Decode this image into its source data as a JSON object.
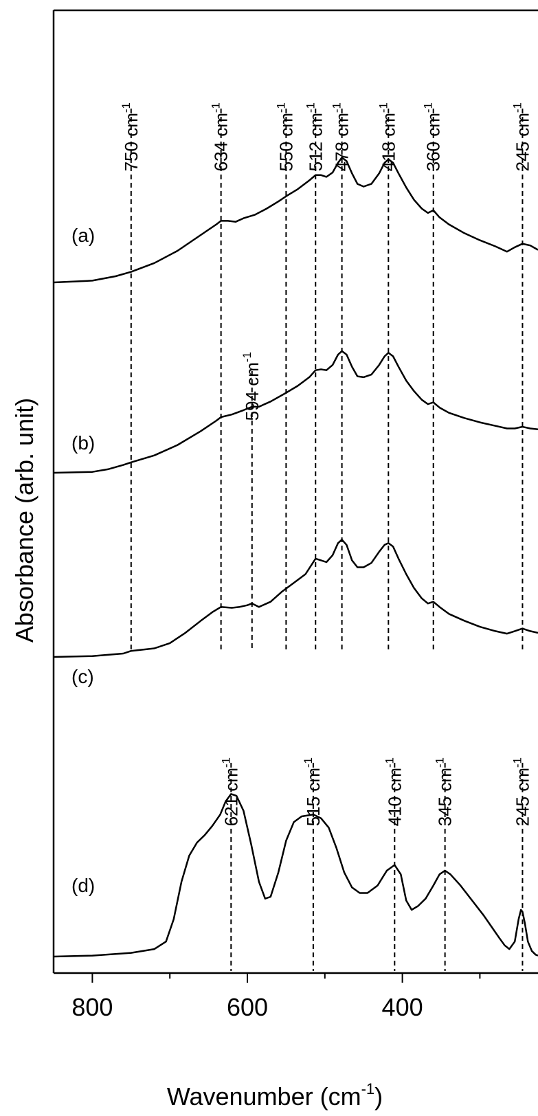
{
  "chart_data": {
    "type": "line",
    "xlabel": "Wavenumber (cm",
    "xlabel_sup": "-1",
    "xlabel_close": ")",
    "ylabel": "Absorbance (arb. unit)",
    "xlim": [
      850,
      225
    ],
    "x_reversed": true,
    "x_ticks": [
      800,
      600,
      400
    ],
    "y_ticks_shown": false,
    "grid": false,
    "legend": "none",
    "series": [
      {
        "label": "(a)",
        "points": [
          [
            850,
            0.0
          ],
          [
            800,
            0.01
          ],
          [
            770,
            0.035
          ],
          [
            750,
            0.06
          ],
          [
            720,
            0.11
          ],
          [
            690,
            0.18
          ],
          [
            660,
            0.27
          ],
          [
            640,
            0.33
          ],
          [
            634,
            0.35
          ],
          [
            625,
            0.35
          ],
          [
            615,
            0.345
          ],
          [
            605,
            0.365
          ],
          [
            590,
            0.385
          ],
          [
            575,
            0.42
          ],
          [
            560,
            0.46
          ],
          [
            550,
            0.49
          ],
          [
            535,
            0.53
          ],
          [
            520,
            0.58
          ],
          [
            512,
            0.61
          ],
          [
            505,
            0.61
          ],
          [
            498,
            0.6
          ],
          [
            490,
            0.625
          ],
          [
            483,
            0.68
          ],
          [
            478,
            0.71
          ],
          [
            472,
            0.69
          ],
          [
            465,
            0.62
          ],
          [
            458,
            0.56
          ],
          [
            450,
            0.545
          ],
          [
            440,
            0.56
          ],
          [
            430,
            0.62
          ],
          [
            423,
            0.68
          ],
          [
            418,
            0.7
          ],
          [
            412,
            0.68
          ],
          [
            405,
            0.62
          ],
          [
            395,
            0.54
          ],
          [
            385,
            0.47
          ],
          [
            375,
            0.42
          ],
          [
            367,
            0.395
          ],
          [
            360,
            0.41
          ],
          [
            352,
            0.37
          ],
          [
            340,
            0.33
          ],
          [
            320,
            0.28
          ],
          [
            300,
            0.24
          ],
          [
            280,
            0.205
          ],
          [
            265,
            0.175
          ],
          [
            255,
            0.2
          ],
          [
            245,
            0.22
          ],
          [
            235,
            0.21
          ],
          [
            225,
            0.185
          ]
        ]
      },
      {
        "label": "(b)",
        "points": [
          [
            850,
            0.0
          ],
          [
            800,
            0.005
          ],
          [
            780,
            0.02
          ],
          [
            760,
            0.045
          ],
          [
            750,
            0.06
          ],
          [
            720,
            0.1
          ],
          [
            690,
            0.16
          ],
          [
            660,
            0.24
          ],
          [
            640,
            0.3
          ],
          [
            634,
            0.32
          ],
          [
            620,
            0.335
          ],
          [
            605,
            0.36
          ],
          [
            594,
            0.38
          ],
          [
            585,
            0.38
          ],
          [
            570,
            0.41
          ],
          [
            550,
            0.46
          ],
          [
            535,
            0.5
          ],
          [
            520,
            0.55
          ],
          [
            512,
            0.59
          ],
          [
            505,
            0.595
          ],
          [
            498,
            0.59
          ],
          [
            490,
            0.62
          ],
          [
            483,
            0.68
          ],
          [
            478,
            0.7
          ],
          [
            472,
            0.68
          ],
          [
            465,
            0.61
          ],
          [
            458,
            0.555
          ],
          [
            450,
            0.55
          ],
          [
            440,
            0.565
          ],
          [
            430,
            0.62
          ],
          [
            423,
            0.67
          ],
          [
            418,
            0.69
          ],
          [
            412,
            0.67
          ],
          [
            405,
            0.61
          ],
          [
            395,
            0.53
          ],
          [
            385,
            0.47
          ],
          [
            375,
            0.42
          ],
          [
            367,
            0.395
          ],
          [
            360,
            0.405
          ],
          [
            352,
            0.375
          ],
          [
            340,
            0.345
          ],
          [
            320,
            0.315
          ],
          [
            300,
            0.29
          ],
          [
            280,
            0.27
          ],
          [
            265,
            0.255
          ],
          [
            255,
            0.255
          ],
          [
            245,
            0.265
          ],
          [
            235,
            0.255
          ],
          [
            225,
            0.25
          ]
        ]
      },
      {
        "label": "(c)",
        "points": [
          [
            850,
            0.0
          ],
          [
            800,
            0.005
          ],
          [
            760,
            0.02
          ],
          [
            750,
            0.035
          ],
          [
            720,
            0.05
          ],
          [
            700,
            0.08
          ],
          [
            680,
            0.14
          ],
          [
            660,
            0.21
          ],
          [
            645,
            0.26
          ],
          [
            634,
            0.29
          ],
          [
            620,
            0.285
          ],
          [
            610,
            0.29
          ],
          [
            600,
            0.3
          ],
          [
            594,
            0.31
          ],
          [
            585,
            0.29
          ],
          [
            570,
            0.32
          ],
          [
            555,
            0.38
          ],
          [
            540,
            0.43
          ],
          [
            525,
            0.48
          ],
          [
            512,
            0.57
          ],
          [
            505,
            0.56
          ],
          [
            498,
            0.55
          ],
          [
            490,
            0.59
          ],
          [
            483,
            0.66
          ],
          [
            478,
            0.68
          ],
          [
            472,
            0.65
          ],
          [
            465,
            0.56
          ],
          [
            458,
            0.52
          ],
          [
            450,
            0.52
          ],
          [
            440,
            0.545
          ],
          [
            430,
            0.61
          ],
          [
            423,
            0.65
          ],
          [
            418,
            0.66
          ],
          [
            412,
            0.64
          ],
          [
            405,
            0.57
          ],
          [
            395,
            0.48
          ],
          [
            385,
            0.4
          ],
          [
            375,
            0.34
          ],
          [
            367,
            0.31
          ],
          [
            360,
            0.32
          ],
          [
            352,
            0.29
          ],
          [
            340,
            0.25
          ],
          [
            320,
            0.21
          ],
          [
            300,
            0.175
          ],
          [
            280,
            0.15
          ],
          [
            265,
            0.135
          ],
          [
            255,
            0.15
          ],
          [
            245,
            0.165
          ],
          [
            235,
            0.15
          ],
          [
            225,
            0.14
          ]
        ]
      },
      {
        "label": "(d)",
        "points": [
          [
            850,
            0.0
          ],
          [
            800,
            0.005
          ],
          [
            750,
            0.02
          ],
          [
            720,
            0.04
          ],
          [
            705,
            0.08
          ],
          [
            695,
            0.2
          ],
          [
            685,
            0.4
          ],
          [
            675,
            0.54
          ],
          [
            665,
            0.61
          ],
          [
            655,
            0.65
          ],
          [
            645,
            0.7
          ],
          [
            635,
            0.76
          ],
          [
            628,
            0.83
          ],
          [
            621,
            0.87
          ],
          [
            614,
            0.86
          ],
          [
            605,
            0.78
          ],
          [
            595,
            0.6
          ],
          [
            585,
            0.4
          ],
          [
            577,
            0.31
          ],
          [
            570,
            0.32
          ],
          [
            560,
            0.45
          ],
          [
            550,
            0.62
          ],
          [
            540,
            0.72
          ],
          [
            530,
            0.75
          ],
          [
            515,
            0.76
          ],
          [
            505,
            0.74
          ],
          [
            495,
            0.69
          ],
          [
            485,
            0.58
          ],
          [
            475,
            0.45
          ],
          [
            465,
            0.37
          ],
          [
            455,
            0.34
          ],
          [
            445,
            0.34
          ],
          [
            432,
            0.38
          ],
          [
            420,
            0.46
          ],
          [
            410,
            0.49
          ],
          [
            402,
            0.44
          ],
          [
            395,
            0.3
          ],
          [
            388,
            0.25
          ],
          [
            380,
            0.27
          ],
          [
            370,
            0.31
          ],
          [
            360,
            0.38
          ],
          [
            352,
            0.44
          ],
          [
            345,
            0.46
          ],
          [
            338,
            0.44
          ],
          [
            325,
            0.38
          ],
          [
            310,
            0.3
          ],
          [
            295,
            0.22
          ],
          [
            285,
            0.16
          ],
          [
            275,
            0.1
          ],
          [
            268,
            0.06
          ],
          [
            262,
            0.04
          ],
          [
            255,
            0.08
          ],
          [
            250,
            0.2
          ],
          [
            247,
            0.25
          ],
          [
            245,
            0.24
          ],
          [
            242,
            0.18
          ],
          [
            238,
            0.08
          ],
          [
            233,
            0.03
          ],
          [
            228,
            0.01
          ],
          [
            225,
            0.005
          ]
        ]
      }
    ],
    "peak_lines_group1": [
      {
        "x": 750,
        "label": "750 cm",
        "sup": "-1"
      },
      {
        "x": 634,
        "label": "634 cm",
        "sup": "-1"
      },
      {
        "x": 550,
        "label": "550 cm",
        "sup": "-1"
      },
      {
        "x": 512,
        "label": "512 cm",
        "sup": "-1"
      },
      {
        "x": 478,
        "label": "478 cm",
        "sup": "-1"
      },
      {
        "x": 418,
        "label": "418 cm",
        "sup": "-1"
      },
      {
        "x": 360,
        "label": "360 cm",
        "sup": "-1"
      },
      {
        "x": 245,
        "label": "245 cm",
        "sup": "-1"
      }
    ],
    "peak_line_594": {
      "x": 594,
      "label": "594 cm",
      "sup": "-1"
    },
    "peak_lines_group2": [
      {
        "x": 621,
        "label": "621 cm",
        "sup": "-1"
      },
      {
        "x": 515,
        "label": "515 cm",
        "sup": "-1"
      },
      {
        "x": 410,
        "label": "410 cm",
        "sup": "-1"
      },
      {
        "x": 345,
        "label": "345 cm",
        "sup": "-1"
      },
      {
        "x": 245,
        "label": "245 cm",
        "sup": "-1"
      }
    ]
  }
}
